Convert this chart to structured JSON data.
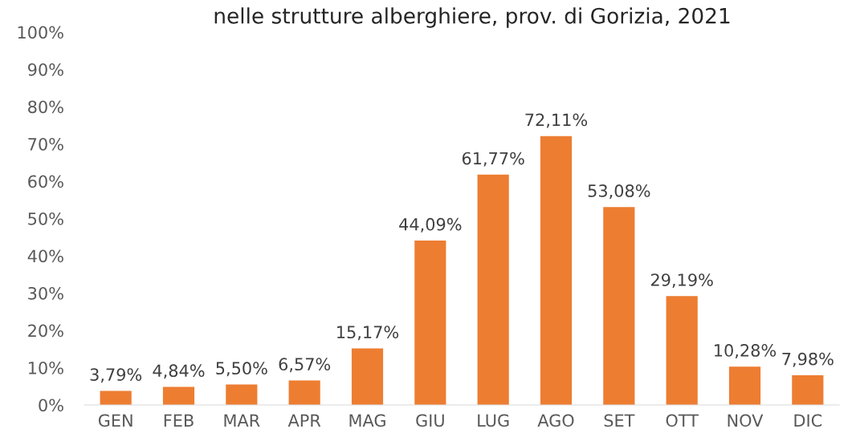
{
  "chart_data": {
    "type": "bar",
    "title": "nelle strutture alberghiere, prov. di Gorizia, 2021",
    "categories": [
      "GEN",
      "FEB",
      "MAR",
      "APR",
      "MAG",
      "GIU",
      "LUG",
      "AGO",
      "SET",
      "OTT",
      "NOV",
      "DIC"
    ],
    "values": [
      3.79,
      4.84,
      5.5,
      6.57,
      15.17,
      44.09,
      61.77,
      72.11,
      53.08,
      29.19,
      10.28,
      7.98
    ],
    "value_labels": [
      "3,79%",
      "4,84%",
      "5,50%",
      "6,57%",
      "15,17%",
      "44,09%",
      "61,77%",
      "72,11%",
      "53,08%",
      "29,19%",
      "10,28%",
      "7,98%"
    ],
    "color": "#ed7d31",
    "ylim": [
      0,
      100
    ],
    "yticks": [
      {
        "value": 0,
        "label": "0%"
      },
      {
        "value": 10,
        "label": "10%"
      },
      {
        "value": 20,
        "label": "20%"
      },
      {
        "value": 30,
        "label": "30%"
      },
      {
        "value": 40,
        "label": "40%"
      },
      {
        "value": 50,
        "label": "50%"
      },
      {
        "value": 60,
        "label": "60%"
      },
      {
        "value": 70,
        "label": "70%"
      },
      {
        "value": 80,
        "label": "80%"
      },
      {
        "value": 90,
        "label": "90%"
      },
      {
        "value": 100,
        "label": "100%"
      }
    ],
    "grid": false
  }
}
